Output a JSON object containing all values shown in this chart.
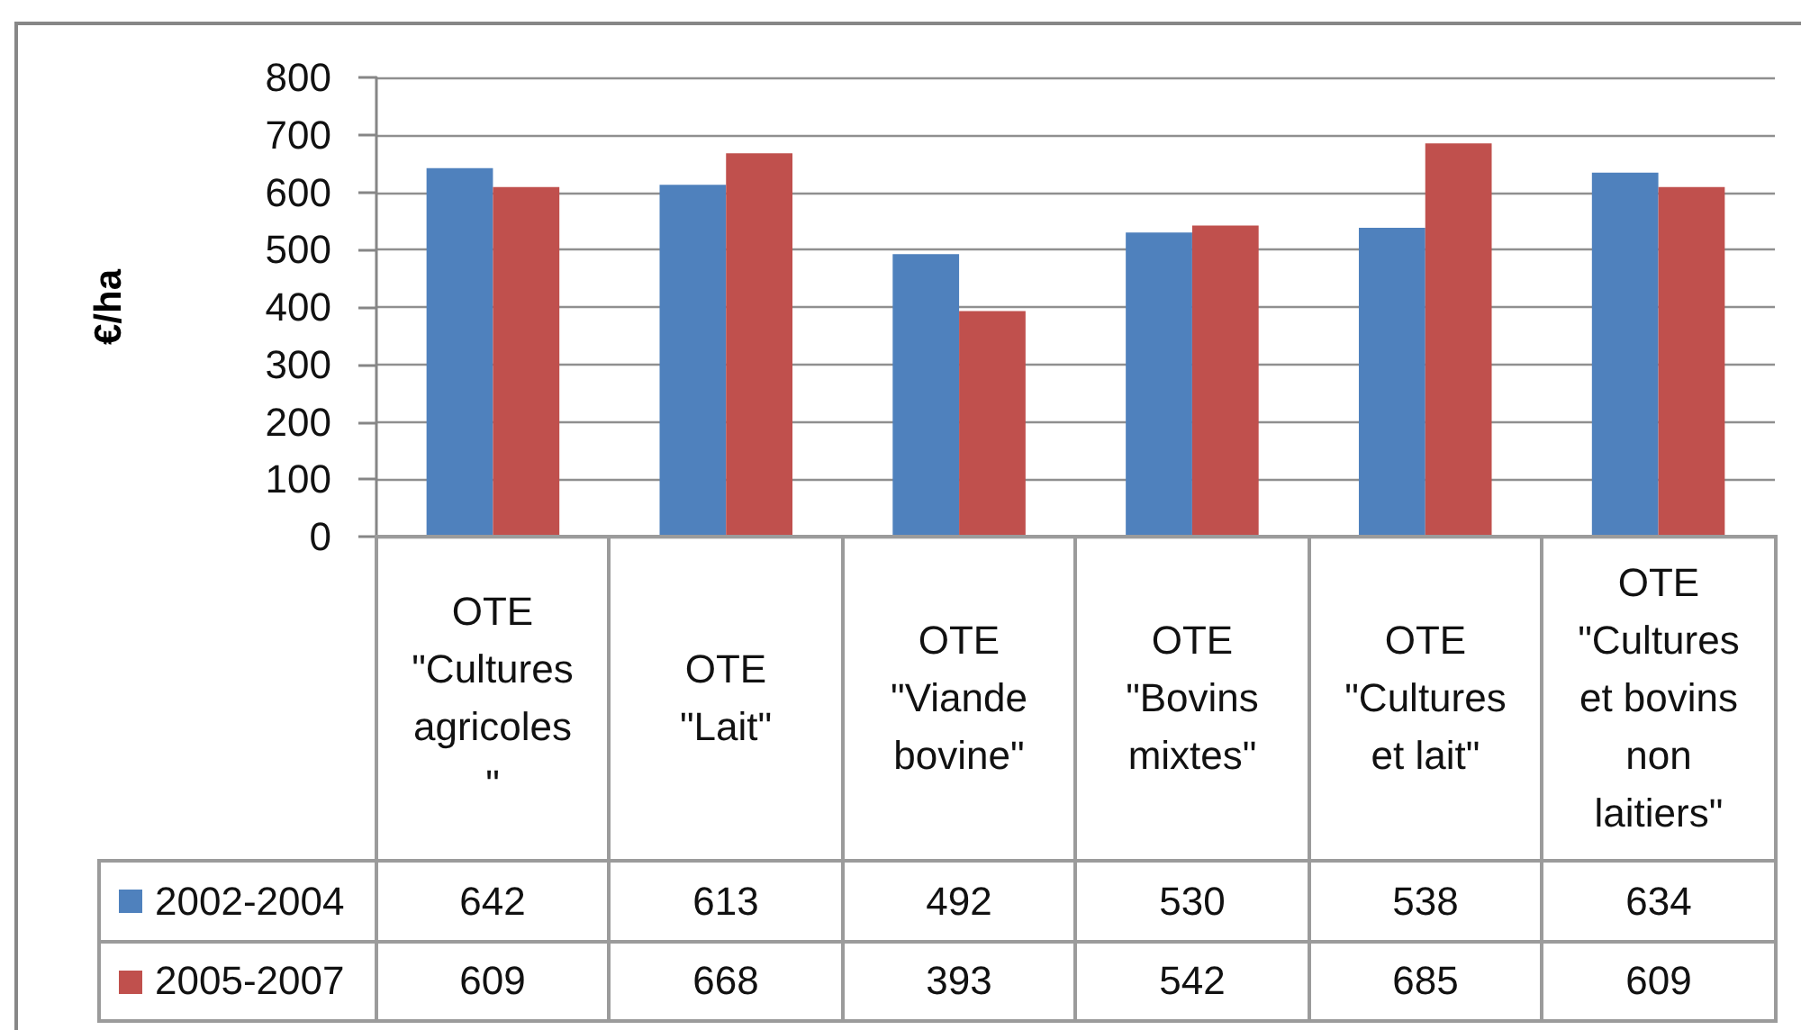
{
  "chart_data": {
    "type": "bar",
    "ylabel": "€/ha",
    "categories": [
      "OTE \"Cultures agricoles\"",
      "OTE \"Lait\"",
      "OTE \"Viande bovine\"",
      "OTE \"Bovins mixtes\"",
      "OTE \"Cultures et lait\"",
      "OTE \"Cultures et bovins non laitiers\""
    ],
    "series": [
      {
        "name": "2002-2004",
        "color": "#4f81bd",
        "values": [
          642,
          613,
          492,
          530,
          538,
          634
        ]
      },
      {
        "name": "2005-2007",
        "color": "#c0504d",
        "values": [
          609,
          668,
          393,
          542,
          685,
          609
        ]
      }
    ],
    "ylim": [
      0,
      800
    ],
    "yticks": [
      0,
      100,
      200,
      300,
      400,
      500,
      600,
      700,
      800
    ],
    "grid": "y",
    "legend": "bottom",
    "data_labels": true
  }
}
